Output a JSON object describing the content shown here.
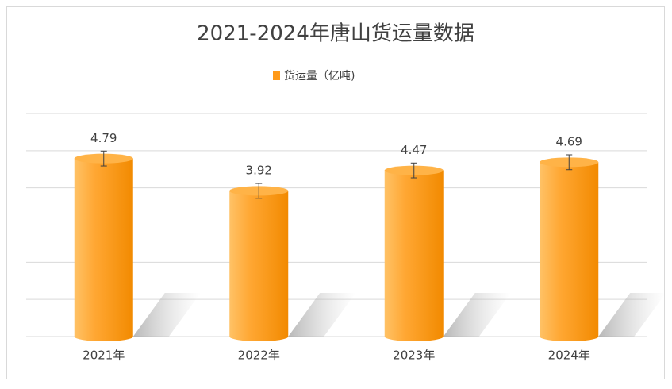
{
  "chart_data": {
    "type": "bar",
    "title": "2021-2024年唐山货运量数据",
    "categories": [
      "2021年",
      "2022年",
      "2023年",
      "2024年"
    ],
    "series": [
      {
        "name": "货运量（亿吨)",
        "color": "#ff9a1a",
        "values": [
          4.79,
          3.92,
          4.47,
          4.69
        ],
        "errors": [
          0.2,
          0.2,
          0.2,
          0.2
        ]
      }
    ],
    "ylim": [
      0,
      6
    ],
    "yticks": [
      0,
      1,
      2,
      3,
      4,
      5,
      6
    ],
    "grid": true,
    "legend": "top"
  }
}
